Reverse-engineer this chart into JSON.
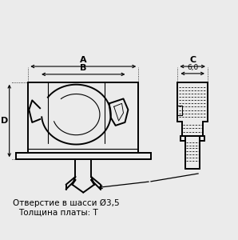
{
  "bg_color": "#ebebeb",
  "text_color": "#000000",
  "line_color": "#000000",
  "title_line1": "Отверстие в шасси Ø3,5",
  "title_line2": "Толщина платы: T",
  "dim_A": "A",
  "dim_B": "B",
  "dim_C": "C",
  "dim_D": "D",
  "dim_60": "6,0",
  "font_size_label": 8,
  "font_size_dim": 7,
  "font_size_text": 7.5
}
